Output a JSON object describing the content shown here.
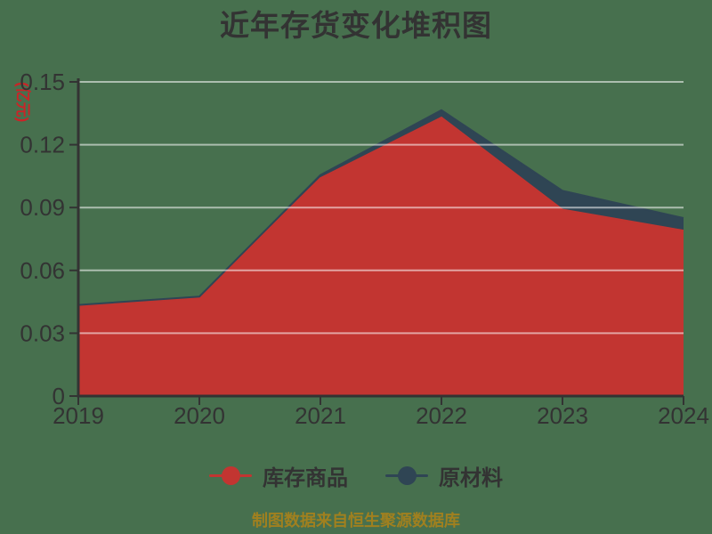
{
  "title": "近年存货变化堆积图",
  "y_axis": {
    "name": "(亿元)",
    "tick_labels": [
      "0",
      "0.03",
      "0.06",
      "0.09",
      "0.12",
      "0.15"
    ]
  },
  "x_axis": {
    "tick_labels": [
      "2019",
      "2020",
      "2021",
      "2022",
      "2023",
      "2024"
    ]
  },
  "legend": {
    "items": [
      {
        "label": "库存商品",
        "color": "#c23531"
      },
      {
        "label": "原材料",
        "color": "#2f4554"
      }
    ]
  },
  "footer": "制图数据来自恒生聚源数据库",
  "colors": {
    "background": "#47704E",
    "series_red": "#c23531",
    "series_blue": "#2f4554",
    "title_text": "#333333",
    "axis_text": "#333333",
    "axis_line": "#333333",
    "gridline": "rgba(255,255,255,0.55)",
    "ylabel_text": "#cb2327",
    "footer_text": "#A0801F"
  },
  "chart_data": {
    "type": "area",
    "stacked": true,
    "title": "近年存货变化堆积图",
    "ylabel": "(亿元)",
    "categories": [
      "2019",
      "2020",
      "2021",
      "2022",
      "2023",
      "2024"
    ],
    "series": [
      {
        "name": "库存商品",
        "color": "#c23531",
        "values": [
          0.043,
          0.047,
          0.104,
          0.133,
          0.089,
          0.079
        ]
      },
      {
        "name": "原材料",
        "color": "#2f4554",
        "values": [
          0.0005,
          0.0005,
          0.0015,
          0.0035,
          0.009,
          0.006
        ]
      }
    ],
    "ylim": [
      0,
      0.15
    ],
    "yticks": [
      0,
      0.03,
      0.06,
      0.09,
      0.12,
      0.15
    ],
    "grid": true,
    "legend_position": "bottom",
    "annotation": "制图数据来自恒生聚源数据库"
  }
}
